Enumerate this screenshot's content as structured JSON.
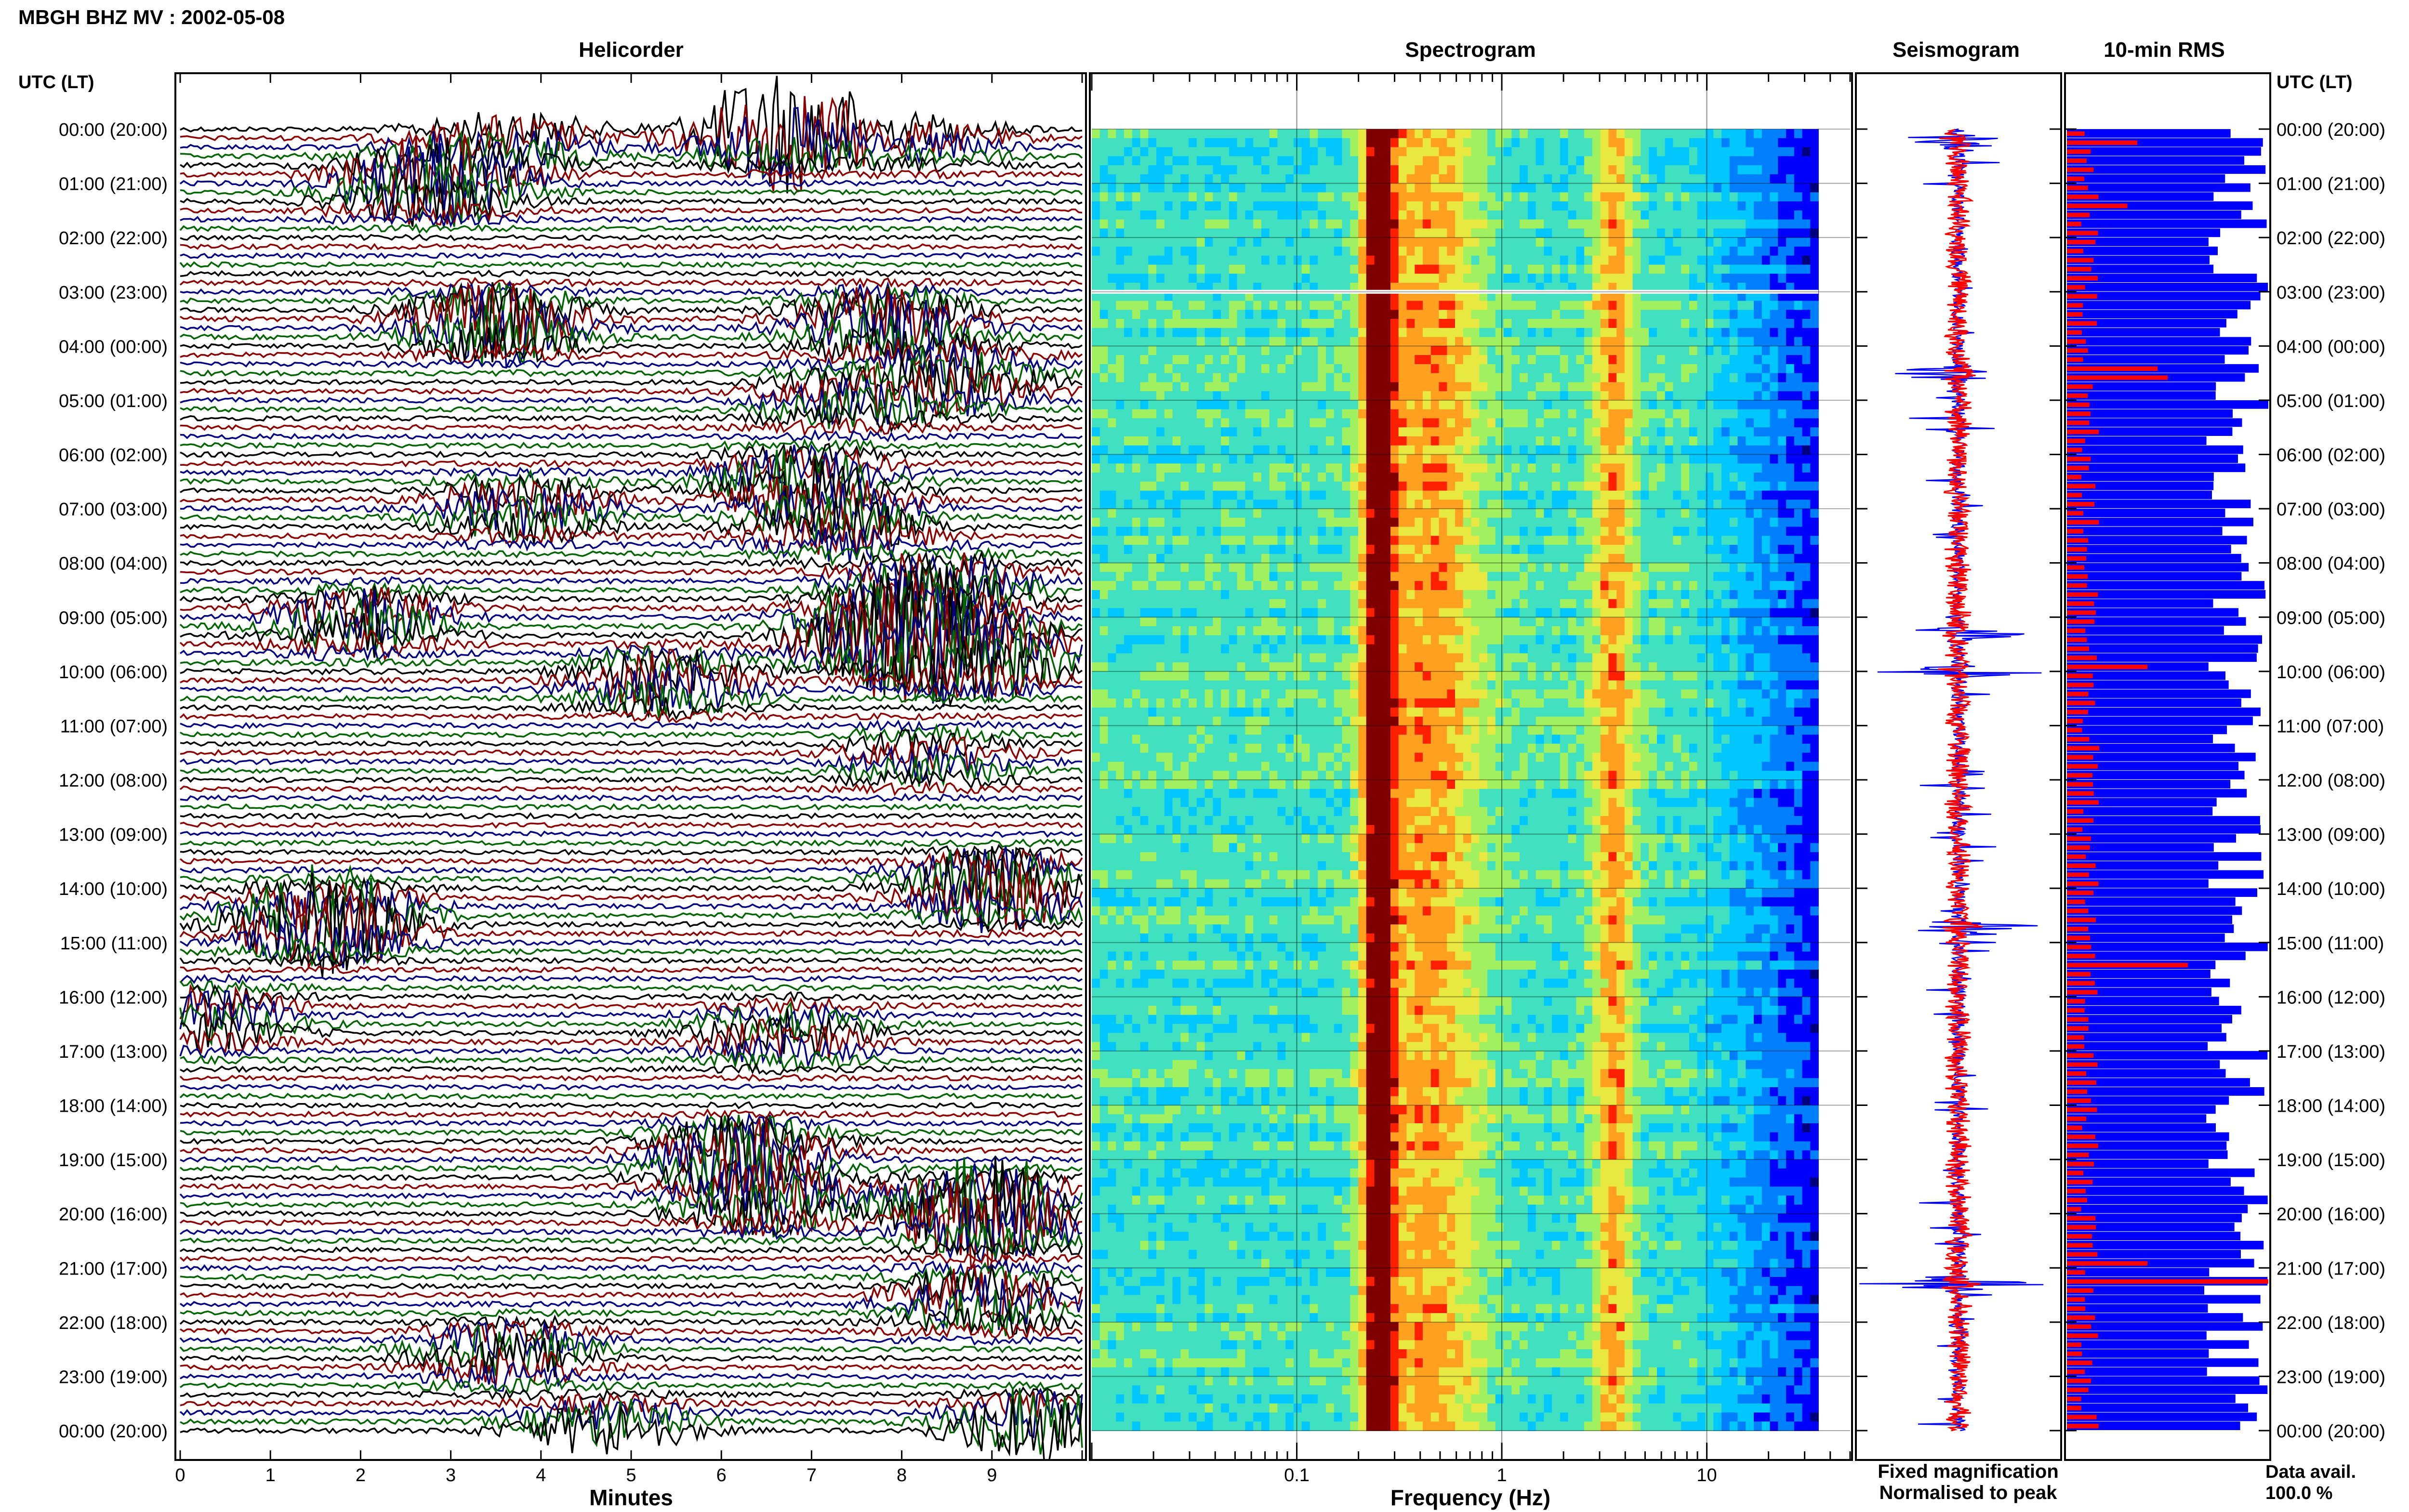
{
  "header": {
    "station_title": "MBGH BHZ MV : 2002-05-08",
    "time_axis_label": "UTC (LT)"
  },
  "panels": {
    "helicorder": "Helicorder",
    "spectrogram": "Spectrogram",
    "seismogram": "Seismogram",
    "rms": "10-min RMS"
  },
  "colors": {
    "trace_cycle": [
      "#000000",
      "#8b0000",
      "#000080",
      "#006400"
    ],
    "fixed": "#0000ff",
    "normalised": "#ff0000",
    "rms_bar": "#0000ff",
    "rms_peak": "#ff0000"
  },
  "legend": {
    "fixed_magnification": "Fixed magnification",
    "normalised_to_peak": "Normalised to peak",
    "data_avail_label": "Data avail.",
    "data_avail_value": "100.0 %"
  },
  "chart_data": [
    {
      "type": "line",
      "panel": "Helicorder",
      "xlabel": "Minutes",
      "x_ticks": [
        "0",
        "1",
        "2",
        "3",
        "4",
        "5",
        "6",
        "7",
        "8",
        "9"
      ],
      "xlim": [
        0,
        10
      ],
      "row_labels": [
        "00:00 (20:00)",
        "01:00 (21:00)",
        "02:00 (22:00)",
        "03:00 (23:00)",
        "04:00 (00:00)",
        "05:00 (01:00)",
        "06:00 (02:00)",
        "07:00 (03:00)",
        "08:00 (04:00)",
        "09:00 (05:00)",
        "10:00 (06:00)",
        "11:00 (07:00)",
        "12:00 (08:00)",
        "13:00 (09:00)",
        "14:00 (10:00)",
        "15:00 (11:00)",
        "16:00 (12:00)",
        "17:00 (13:00)",
        "18:00 (14:00)",
        "19:00 (15:00)",
        "20:00 (16:00)",
        "21:00 (17:00)",
        "22:00 (18:00)",
        "23:00 (19:00)",
        "00:00 (20:00)"
      ],
      "rows_per_hour": 6,
      "events": [
        {
          "hour": 0.0,
          "minute": 6.7,
          "amp": 2.4
        },
        {
          "hour": 0.2,
          "minute": 3.7,
          "amp": 0.8
        },
        {
          "hour": 0.2,
          "minute": 8.3,
          "amp": 0.5
        },
        {
          "hour": 0.9,
          "minute": 2.9,
          "amp": 1.0
        },
        {
          "hour": 1.1,
          "minute": 2.6,
          "amp": 0.7
        },
        {
          "hour": 3.6,
          "minute": 3.5,
          "amp": 1.5
        },
        {
          "hour": 3.6,
          "minute": 7.8,
          "amp": 1.3
        },
        {
          "hour": 4.6,
          "minute": 8.6,
          "amp": 1.0
        },
        {
          "hour": 5.0,
          "minute": 7.4,
          "amp": 0.8
        },
        {
          "hour": 6.5,
          "minute": 6.9,
          "amp": 1.2
        },
        {
          "hour": 7.0,
          "minute": 3.8,
          "amp": 1.0
        },
        {
          "hour": 7.3,
          "minute": 7.3,
          "amp": 1.1
        },
        {
          "hour": 8.5,
          "minute": 8.4,
          "amp": 1.3
        },
        {
          "hour": 9.1,
          "minute": 2.0,
          "amp": 1.1
        },
        {
          "hour": 9.3,
          "minute": 7.8,
          "amp": 2.0
        },
        {
          "hour": 9.7,
          "minute": 8.8,
          "amp": 1.8
        },
        {
          "hour": 10.2,
          "minute": 5.4,
          "amp": 1.1
        },
        {
          "hour": 11.6,
          "minute": 8.3,
          "amp": 0.7
        },
        {
          "hour": 14.0,
          "minute": 9.0,
          "amp": 1.6
        },
        {
          "hour": 14.6,
          "minute": 1.6,
          "amp": 2.0
        },
        {
          "hour": 16.4,
          "minute": 0.3,
          "amp": 0.9
        },
        {
          "hour": 16.7,
          "minute": 6.7,
          "amp": 0.9
        },
        {
          "hour": 18.9,
          "minute": 6.2,
          "amp": 1.3
        },
        {
          "hour": 19.7,
          "minute": 6.5,
          "amp": 1.3
        },
        {
          "hour": 20.0,
          "minute": 9.0,
          "amp": 2.2
        },
        {
          "hour": 21.6,
          "minute": 8.9,
          "amp": 1.1
        },
        {
          "hour": 22.6,
          "minute": 3.6,
          "amp": 1.0
        },
        {
          "hour": 24.0,
          "minute": 4.7,
          "amp": 1.0
        },
        {
          "hour": 24.0,
          "minute": 9.5,
          "amp": 1.5
        }
      ]
    },
    {
      "type": "heatmap",
      "panel": "Spectrogram",
      "xlabel": "Frequency (Hz)",
      "x_scale": "log",
      "xlim": [
        0.01,
        50
      ],
      "x_ticks": [
        "0.1",
        "1",
        "10"
      ],
      "data_xlim": [
        0.01,
        35
      ],
      "dominant_bands_hz": [
        {
          "center": 0.25,
          "strength": 0.55,
          "width": 0.08
        },
        {
          "center": 0.45,
          "strength": 0.3,
          "width": 0.25
        },
        {
          "center": 3.5,
          "strength": 0.3,
          "width": 0.1
        }
      ],
      "gap_hour": 3.0,
      "colormap": [
        "#00007f",
        "#0000ff",
        "#0080ff",
        "#00c8ff",
        "#40e0c0",
        "#a0f060",
        "#e8e840",
        "#ffa020",
        "#ff2000",
        "#800000"
      ]
    },
    {
      "type": "line",
      "panel": "Seismogram",
      "series": [
        {
          "name": "Fixed magnification",
          "color": "#0000ff"
        },
        {
          "name": "Normalised to peak",
          "color": "#ff0000"
        }
      ],
      "spikes": [
        {
          "hour": 0.2,
          "amp": 0.6
        },
        {
          "hour": 4.5,
          "amp": 0.9
        },
        {
          "hour": 9.3,
          "amp": 0.8
        },
        {
          "hour": 10.0,
          "amp": 0.9
        },
        {
          "hour": 14.7,
          "amp": 0.9
        },
        {
          "hour": 21.3,
          "amp": 1.0
        }
      ]
    },
    {
      "type": "bar",
      "panel": "10-min RMS",
      "bins_per_hour": 6,
      "series": [
        {
          "name": "10-min RMS",
          "color": "#0000ff"
        },
        {
          "name": "peak",
          "color": "#ff0000"
        }
      ],
      "peak_bins": [
        {
          "hour": 0.2,
          "value": 0.35
        },
        {
          "hour": 1.4,
          "value": 0.3
        },
        {
          "hour": 4.4,
          "value": 0.45
        },
        {
          "hour": 4.5,
          "value": 0.5
        },
        {
          "hour": 9.9,
          "value": 0.4
        },
        {
          "hour": 15.4,
          "value": 0.6
        },
        {
          "hour": 21.2,
          "value": 1.0
        },
        {
          "hour": 20.8,
          "value": 0.4
        }
      ]
    }
  ]
}
